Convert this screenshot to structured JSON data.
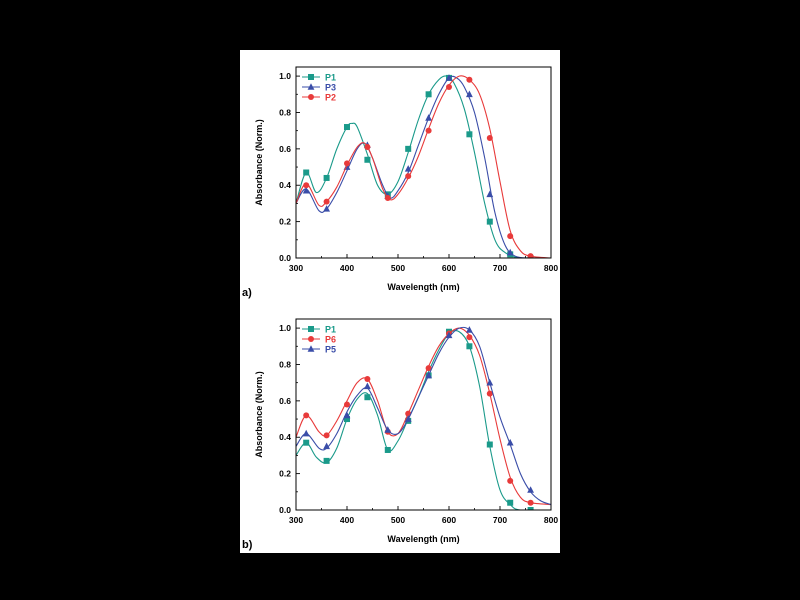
{
  "figure": {
    "panel_labels": [
      "a)",
      "b)"
    ]
  },
  "chart_data": [
    {
      "type": "line",
      "panel": "a)",
      "xlabel": "Wavelength (nm)",
      "ylabel": "Absorbance (Norm.)",
      "xlim": [
        300,
        800
      ],
      "ylim": [
        0.0,
        1.05
      ],
      "xticks": [
        300,
        400,
        500,
        600,
        700,
        800
      ],
      "yticks": [
        0.0,
        0.2,
        0.4,
        0.6,
        0.8,
        1.0
      ],
      "ytick_labels": [
        "0.0",
        "0.2",
        "0.4",
        "0.6",
        "0.8",
        "1.0"
      ],
      "grid": false,
      "legend": "top-left",
      "series": [
        {
          "name": "P1",
          "color": "#1a9a8a",
          "marker": "square",
          "curve": [
            [
              300,
              0.3
            ],
            [
              320,
              0.47
            ],
            [
              340,
              0.36
            ],
            [
              360,
              0.44
            ],
            [
              380,
              0.6
            ],
            [
              400,
              0.72
            ],
            [
              410,
              0.74
            ],
            [
              420,
              0.72
            ],
            [
              440,
              0.57
            ],
            [
              460,
              0.4
            ],
            [
              480,
              0.35
            ],
            [
              500,
              0.42
            ],
            [
              520,
              0.58
            ],
            [
              540,
              0.76
            ],
            [
              560,
              0.9
            ],
            [
              580,
              0.98
            ],
            [
              595,
              1.0
            ],
            [
              610,
              0.96
            ],
            [
              630,
              0.82
            ],
            [
              650,
              0.58
            ],
            [
              670,
              0.3
            ],
            [
              690,
              0.1
            ],
            [
              710,
              0.03
            ],
            [
              740,
              0.0
            ],
            [
              800,
              0.0
            ]
          ],
          "markers": [
            [
              320,
              0.47
            ],
            [
              360,
              0.44
            ],
            [
              400,
              0.72
            ],
            [
              440,
              0.54
            ],
            [
              480,
              0.35
            ],
            [
              520,
              0.6
            ],
            [
              560,
              0.9
            ],
            [
              600,
              0.99
            ],
            [
              640,
              0.68
            ],
            [
              680,
              0.2
            ],
            [
              720,
              0.02
            ],
            [
              760,
              0.0
            ]
          ]
        },
        {
          "name": "P3",
          "color": "#3a4da8",
          "marker": "triangle",
          "curve": [
            [
              300,
              0.3
            ],
            [
              320,
              0.38
            ],
            [
              345,
              0.26
            ],
            [
              360,
              0.27
            ],
            [
              380,
              0.36
            ],
            [
              400,
              0.48
            ],
            [
              420,
              0.6
            ],
            [
              435,
              0.63
            ],
            [
              450,
              0.55
            ],
            [
              470,
              0.4
            ],
            [
              485,
              0.33
            ],
            [
              500,
              0.37
            ],
            [
              520,
              0.47
            ],
            [
              540,
              0.62
            ],
            [
              560,
              0.77
            ],
            [
              580,
              0.9
            ],
            [
              600,
              0.99
            ],
            [
              615,
              0.99
            ],
            [
              630,
              0.94
            ],
            [
              650,
              0.8
            ],
            [
              670,
              0.55
            ],
            [
              690,
              0.25
            ],
            [
              710,
              0.07
            ],
            [
              730,
              0.01
            ],
            [
              760,
              0.0
            ],
            [
              800,
              0.0
            ]
          ],
          "markers": [
            [
              320,
              0.37
            ],
            [
              360,
              0.27
            ],
            [
              400,
              0.5
            ],
            [
              440,
              0.62
            ],
            [
              480,
              0.34
            ],
            [
              520,
              0.49
            ],
            [
              560,
              0.77
            ],
            [
              600,
              0.99
            ],
            [
              640,
              0.9
            ],
            [
              680,
              0.35
            ],
            [
              720,
              0.03
            ],
            [
              760,
              0.0
            ]
          ]
        },
        {
          "name": "P2",
          "color": "#e83a3a",
          "marker": "circle",
          "curve": [
            [
              300,
              0.3
            ],
            [
              320,
              0.41
            ],
            [
              345,
              0.29
            ],
            [
              360,
              0.31
            ],
            [
              380,
              0.39
            ],
            [
              400,
              0.51
            ],
            [
              420,
              0.61
            ],
            [
              435,
              0.63
            ],
            [
              450,
              0.55
            ],
            [
              470,
              0.38
            ],
            [
              485,
              0.32
            ],
            [
              500,
              0.35
            ],
            [
              520,
              0.44
            ],
            [
              540,
              0.56
            ],
            [
              560,
              0.71
            ],
            [
              580,
              0.85
            ],
            [
              600,
              0.95
            ],
            [
              620,
              1.0
            ],
            [
              640,
              0.98
            ],
            [
              660,
              0.9
            ],
            [
              680,
              0.71
            ],
            [
              700,
              0.42
            ],
            [
              720,
              0.15
            ],
            [
              740,
              0.04
            ],
            [
              760,
              0.01
            ],
            [
              800,
              0.0
            ]
          ],
          "markers": [
            [
              320,
              0.4
            ],
            [
              360,
              0.31
            ],
            [
              400,
              0.52
            ],
            [
              440,
              0.61
            ],
            [
              480,
              0.33
            ],
            [
              520,
              0.45
            ],
            [
              560,
              0.7
            ],
            [
              600,
              0.94
            ],
            [
              640,
              0.98
            ],
            [
              680,
              0.66
            ],
            [
              720,
              0.12
            ],
            [
              760,
              0.01
            ]
          ]
        }
      ]
    },
    {
      "type": "line",
      "panel": "b)",
      "xlabel": "Wavelength (nm)",
      "ylabel": "Absorbance (Norm.)",
      "xlim": [
        300,
        800
      ],
      "ylim": [
        0.0,
        1.05
      ],
      "xticks": [
        300,
        400,
        500,
        600,
        700,
        800
      ],
      "yticks": [
        0.0,
        0.2,
        0.4,
        0.6,
        0.8,
        1.0
      ],
      "ytick_labels": [
        "0.0",
        "0.2",
        "0.4",
        "0.6",
        "0.8",
        "1.0"
      ],
      "grid": false,
      "legend": "top-left",
      "series": [
        {
          "name": "P1",
          "color": "#1a9a8a",
          "marker": "square",
          "curve": [
            [
              300,
              0.3
            ],
            [
              320,
              0.37
            ],
            [
              340,
              0.29
            ],
            [
              360,
              0.26
            ],
            [
              380,
              0.34
            ],
            [
              400,
              0.5
            ],
            [
              420,
              0.61
            ],
            [
              440,
              0.64
            ],
            [
              460,
              0.52
            ],
            [
              480,
              0.33
            ],
            [
              500,
              0.38
            ],
            [
              520,
              0.5
            ],
            [
              540,
              0.62
            ],
            [
              560,
              0.76
            ],
            [
              580,
              0.88
            ],
            [
              600,
              0.97
            ],
            [
              620,
              0.98
            ],
            [
              640,
              0.9
            ],
            [
              660,
              0.68
            ],
            [
              680,
              0.35
            ],
            [
              700,
              0.11
            ],
            [
              720,
              0.03
            ],
            [
              740,
              0.0
            ],
            [
              800,
              0.0
            ]
          ],
          "markers": [
            [
              320,
              0.37
            ],
            [
              360,
              0.27
            ],
            [
              400,
              0.5
            ],
            [
              440,
              0.62
            ],
            [
              480,
              0.33
            ],
            [
              520,
              0.49
            ],
            [
              560,
              0.74
            ],
            [
              600,
              0.98
            ],
            [
              640,
              0.9
            ],
            [
              680,
              0.36
            ],
            [
              720,
              0.04
            ],
            [
              760,
              0.0
            ]
          ]
        },
        {
          "name": "P6",
          "color": "#e83a3a",
          "marker": "circle",
          "curve": [
            [
              300,
              0.4
            ],
            [
              320,
              0.52
            ],
            [
              345,
              0.43
            ],
            [
              360,
              0.41
            ],
            [
              380,
              0.49
            ],
            [
              400,
              0.6
            ],
            [
              420,
              0.7
            ],
            [
              440,
              0.72
            ],
            [
              460,
              0.6
            ],
            [
              480,
              0.43
            ],
            [
              500,
              0.42
            ],
            [
              520,
              0.53
            ],
            [
              540,
              0.66
            ],
            [
              560,
              0.79
            ],
            [
              580,
              0.9
            ],
            [
              600,
              0.97
            ],
            [
              620,
              1.0
            ],
            [
              640,
              0.96
            ],
            [
              660,
              0.85
            ],
            [
              680,
              0.64
            ],
            [
              700,
              0.39
            ],
            [
              720,
              0.18
            ],
            [
              740,
              0.07
            ],
            [
              760,
              0.04
            ],
            [
              800,
              0.03
            ]
          ],
          "markers": [
            [
              320,
              0.52
            ],
            [
              360,
              0.41
            ],
            [
              400,
              0.58
            ],
            [
              440,
              0.72
            ],
            [
              480,
              0.43
            ],
            [
              520,
              0.53
            ],
            [
              560,
              0.78
            ],
            [
              600,
              0.97
            ],
            [
              640,
              0.95
            ],
            [
              680,
              0.64
            ],
            [
              720,
              0.16
            ],
            [
              760,
              0.04
            ]
          ]
        },
        {
          "name": "P5",
          "color": "#3a4da8",
          "marker": "triangle",
          "curve": [
            [
              300,
              0.35
            ],
            [
              320,
              0.42
            ],
            [
              345,
              0.34
            ],
            [
              360,
              0.34
            ],
            [
              380,
              0.42
            ],
            [
              400,
              0.54
            ],
            [
              420,
              0.63
            ],
            [
              440,
              0.67
            ],
            [
              460,
              0.56
            ],
            [
              480,
              0.44
            ],
            [
              500,
              0.42
            ],
            [
              520,
              0.5
            ],
            [
              540,
              0.62
            ],
            [
              560,
              0.74
            ],
            [
              580,
              0.86
            ],
            [
              600,
              0.95
            ],
            [
              620,
              1.0
            ],
            [
              640,
              0.99
            ],
            [
              660,
              0.9
            ],
            [
              680,
              0.7
            ],
            [
              700,
              0.51
            ],
            [
              720,
              0.36
            ],
            [
              740,
              0.2
            ],
            [
              760,
              0.1
            ],
            [
              780,
              0.05
            ],
            [
              800,
              0.03
            ]
          ],
          "markers": [
            [
              320,
              0.42
            ],
            [
              360,
              0.35
            ],
            [
              400,
              0.52
            ],
            [
              440,
              0.68
            ],
            [
              480,
              0.44
            ],
            [
              520,
              0.5
            ],
            [
              560,
              0.74
            ],
            [
              600,
              0.96
            ],
            [
              640,
              0.99
            ],
            [
              680,
              0.7
            ],
            [
              720,
              0.37
            ],
            [
              760,
              0.11
            ]
          ]
        }
      ]
    }
  ]
}
